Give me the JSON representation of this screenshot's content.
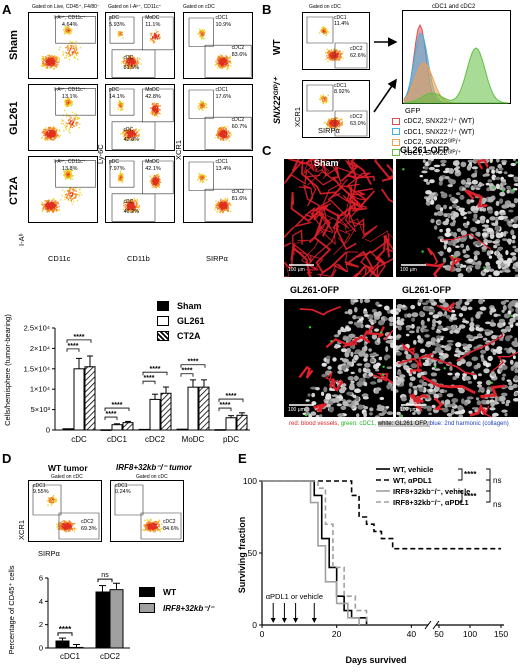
{
  "panel_labels": {
    "a": "A",
    "b": "B",
    "c": "C",
    "d": "D",
    "e": "E"
  },
  "panel_a": {
    "col_headers": [
      "Gated on Live, CD45⁺, F4/80⁻",
      "Gated on I-Aᵇ⁺, CD11c⁺",
      "Gated on cDC"
    ],
    "rows": [
      {
        "label": "Sham",
        "gate1_name": "I-Aᵇ⁺, CD11c⁺",
        "gate1_pct": "4.64%",
        "pdc": "pDC",
        "pdc_pct": "5.93%",
        "modc": "MoDC",
        "modc_pct": "11.1%",
        "cdc": "cDC",
        "cdc_pct": "81.5%",
        "cdc1": "cDC1",
        "cdc1_pct": "10.9%",
        "cdc2": "cDC2",
        "cdc2_pct": "83.6%"
      },
      {
        "label": "GL261",
        "gate1_name": "I-Aᵇ⁺, CD11c⁺",
        "gate1_pct": "13.1%",
        "pdc": "pDC",
        "pdc_pct": "14.1%",
        "modc": "MoDC",
        "modc_pct": "42.8%",
        "cdc": "cDC",
        "cdc_pct": "42.8%",
        "cdc1": "cDC1",
        "cdc1_pct": "17.6%",
        "cdc2": "cDC2",
        "cdc2_pct": "60.7%"
      },
      {
        "label": "CT2A",
        "gate1_name": "I-Aᵇ⁺, CD11c⁺",
        "gate1_pct": "13.8%",
        "pdc": "pDC",
        "pdc_pct": "7.97%",
        "modc": "MoDC",
        "modc_pct": "42.1%",
        "cdc": "cDC",
        "cdc_pct": "46.2%",
        "cdc1": "cDC1",
        "cdc1_pct": "13.4%",
        "cdc2": "cDC2",
        "cdc2_pct": "81.6%"
      }
    ],
    "x_axes": [
      "CD11c",
      "CD11b",
      "SIRPα"
    ],
    "y_axes": [
      "I-Aᵇ",
      "Ly-6C",
      "XCR1"
    ]
  },
  "panel_a_chart": {
    "legend": [
      "Sham",
      "GL261",
      "CT2A"
    ],
    "ylabel": "Cells/hemisphere (tumor-bearing)",
    "yticks": [
      "0",
      "5×10³",
      "1×10⁴",
      "1.5×10⁴",
      "2×10⁴",
      "2.5×10⁴"
    ],
    "sig": "****"
  },
  "chart_data": [
    {
      "type": "bar",
      "categories": [
        "cDC",
        "cDC1",
        "cDC2",
        "MoDC",
        "pDC"
      ],
      "series": [
        {
          "name": "Sham",
          "values": [
            300,
            50,
            150,
            200,
            80
          ]
        },
        {
          "name": "GL261",
          "values": [
            15000,
            1300,
            7500,
            10500,
            3000
          ]
        },
        {
          "name": "CT2A",
          "values": [
            15500,
            1800,
            9000,
            10500,
            3600
          ]
        }
      ],
      "ylabel": "Cells/hemisphere (tumor-bearing)",
      "ylim": [
        0,
        25000
      ]
    },
    {
      "type": "bar",
      "categories": [
        "cDC1",
        "cDC2"
      ],
      "series": [
        {
          "name": "WT",
          "values": [
            0.6,
            4.8
          ]
        },
        {
          "name": "IRF8+32kb⁻/⁻",
          "values": [
            0.05,
            5.0
          ]
        }
      ],
      "ylabel": "Percentage of CD45⁺ cells",
      "ylim": [
        0,
        6
      ]
    },
    {
      "type": "line",
      "xlabel": "Days survived",
      "ylabel": "Surviving fraction",
      "ylim": [
        0,
        100
      ],
      "xticks": [
        "0",
        "20",
        "40",
        "50",
        "100",
        "150"
      ],
      "series": [
        {
          "name": "WT, vehicle",
          "x": [
            0,
            14,
            16,
            18,
            20,
            22,
            24,
            28
          ],
          "y": [
            100,
            90,
            60,
            40,
            20,
            10,
            5,
            0
          ]
        },
        {
          "name": "WT, αPDL1",
          "x": [
            0,
            22,
            24,
            26,
            28,
            30,
            32,
            35,
            150
          ],
          "y": [
            100,
            100,
            90,
            75,
            70,
            65,
            60,
            53,
            53
          ]
        },
        {
          "name": "IRF8+32kb⁻/⁻, vehicle",
          "x": [
            0,
            13,
            15,
            17,
            20,
            23,
            26
          ],
          "y": [
            100,
            85,
            55,
            30,
            15,
            5,
            0
          ]
        },
        {
          "name": "IRF8+32kb⁻/⁻, αPDL1",
          "x": [
            0,
            15,
            17,
            19,
            22,
            25,
            28
          ],
          "y": [
            100,
            95,
            70,
            40,
            20,
            10,
            0
          ]
        }
      ]
    }
  ],
  "panel_b": {
    "col_header": "Gated on cDC",
    "hist_title": "cDC1 and cDC2",
    "row_labels": [
      "WT",
      "SNX22ᴳᶠᴾ/⁺"
    ],
    "wt": {
      "cdc1": "cDC1",
      "cdc1_pct": "11.4%",
      "cdc2": "cDC2",
      "cdc2_pct": "62.6%"
    },
    "ko": {
      "cdc1": "cDC1",
      "cdc1_pct": "8.92%",
      "cdc2": "cDC2",
      "cdc2_pct": "63.0%"
    },
    "xaxis": "SIRPα",
    "yaxis": "XCR1",
    "hist_x": "GFP",
    "legend": [
      {
        "text": "cDC2, SNX22⁺/⁺ (WT)",
        "color": "#e05050"
      },
      {
        "text": "cDC1, SNX22⁺/⁺ (WT)",
        "color": "#40b0e0"
      },
      {
        "text": "cDC2, SNX22ᴳᶠᴾ/⁺",
        "color": "#f0a050"
      },
      {
        "text": "cDC1, SNX22ᴳᶠᴾ/⁺",
        "color": "#60c040"
      }
    ]
  },
  "panel_c": {
    "titles": [
      "Sham",
      "GL261-OFP",
      "GL261-OFP",
      "GL261-OFP"
    ],
    "scale": "100 μm",
    "caption_parts": [
      {
        "text": "red: blood vessels, ",
        "color": "#e02020"
      },
      {
        "text": "green: cDC1, ",
        "color": "#20b020"
      },
      {
        "text": "white: GL261 OFP, ",
        "color": "#000",
        "bg": "#c8c8c8"
      },
      {
        "text": "blue: 2nd harmonic (collagen)",
        "color": "#2040c0"
      }
    ]
  },
  "panel_d": {
    "titles": [
      "WT tumor",
      "IRF8+32kb⁻/⁻ tumor"
    ],
    "gated": "Gated on cDC",
    "wt": {
      "cdc1": "cDC1",
      "cdc1_pct": "9.55%",
      "cdc2": "cDC2",
      "cdc2_pct": "69.3%"
    },
    "ko": {
      "cdc1": "cDC1",
      "cdc1_pct": "0.24%",
      "cdc2": "cDC2",
      "cdc2_pct": "84.6%"
    },
    "xaxis": "SIRPα",
    "yaxis": "XCR1",
    "legend": [
      "WT",
      "IRF8+32kb⁻/⁻"
    ],
    "yticks": [
      "0",
      "2",
      "4",
      "6"
    ],
    "sig": "****",
    "ns": "ns"
  },
  "panel_e": {
    "legend": [
      "WT, vehicle",
      "WT, αPDL1",
      "IRF8+32kb⁻/⁻, vehicle",
      "IRF8+32kb⁻/⁻, αPDL1"
    ],
    "stats": [
      "****",
      "****",
      "ns",
      "ns"
    ],
    "yticks": [
      "0",
      "50",
      "100"
    ],
    "xticks": [
      "0",
      "20",
      "40",
      "50",
      "100",
      "150"
    ],
    "annotation": "αPDL1 or vehicle",
    "ylabel": "Surviving fraction",
    "xlabel": "Days survived"
  }
}
